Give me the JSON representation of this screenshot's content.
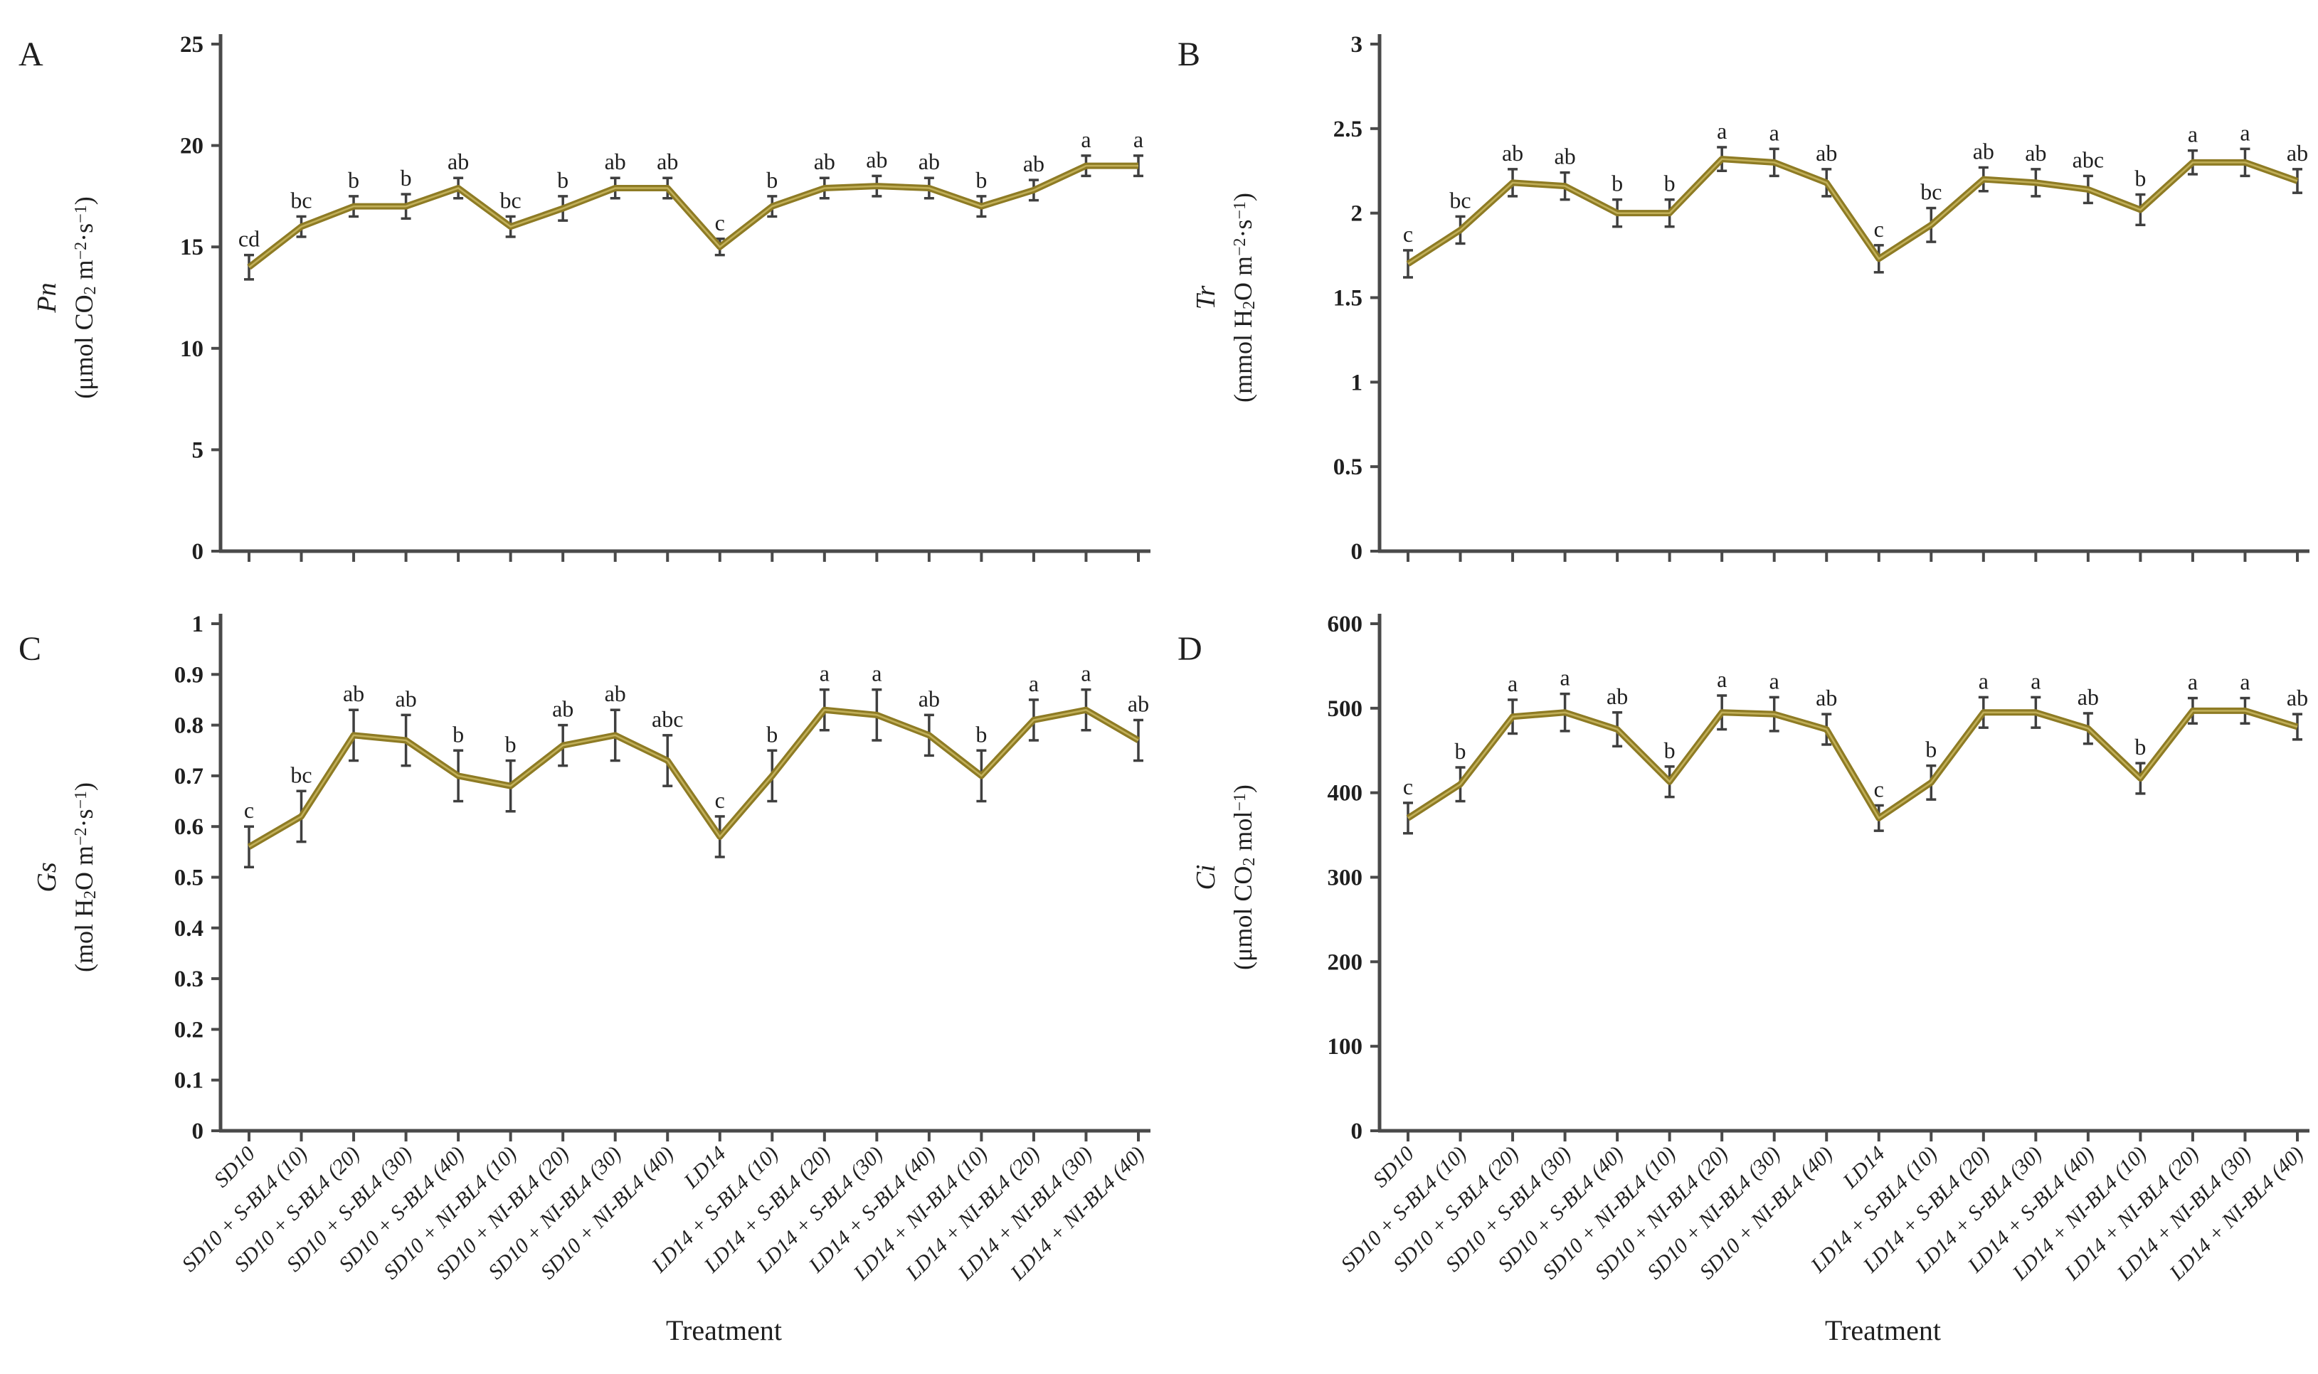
{
  "figure": {
    "colors": {
      "line": "#8E7B24",
      "line_core": "#C1AF58",
      "axis": "#4A4A4A",
      "error_bar": "#3F3F3F",
      "text": "#1F1F1F"
    },
    "treatment_axis_label": "Treatment"
  },
  "chart_data": [
    {
      "type": "line",
      "panel_label": "A",
      "ylabel_main": "Pn",
      "ylabel_unit": "(μmol CO_2_ m^−2^·s^−1^)",
      "xlabel": "",
      "ylim": [
        0,
        25
      ],
      "yticks": [
        {
          "v": 0,
          "t": "0"
        },
        {
          "v": 5,
          "t": "5"
        },
        {
          "v": 10,
          "t": "10"
        },
        {
          "v": 15,
          "t": "15"
        },
        {
          "v": 20,
          "t": "20"
        },
        {
          "v": 25,
          "t": "25"
        }
      ],
      "categories": [
        "SD10",
        "SD10 + S-BL4 (10)",
        "SD10 + S-BL4 (20)",
        "SD10 + S-BL4 (30)",
        "SD10 + S-BL4 (40)",
        "SD10 + NI-BL4 (10)",
        "SD10 + NI-BL4 (20)",
        "SD10 + NI-BL4 (30)",
        "SD10 + NI-BL4 (40)",
        "LD14",
        "LD14 + S-BL4 (10)",
        "LD14 + S-BL4 (20)",
        "LD14 + S-BL4 (30)",
        "LD14 + S-BL4 (40)",
        "LD14 + NI-BL4 (10)",
        "LD14 + NI-BL4 (20)",
        "LD14 + NI-BL4 (30)",
        "LD14 + NI-BL4 (40)"
      ],
      "values": [
        14.0,
        16.0,
        17.0,
        17.0,
        17.9,
        16.0,
        16.9,
        17.9,
        17.9,
        15.0,
        17.0,
        17.9,
        18.0,
        17.9,
        17.0,
        17.8,
        19.0,
        19.0
      ],
      "errors": [
        0.6,
        0.5,
        0.5,
        0.6,
        0.5,
        0.5,
        0.6,
        0.5,
        0.5,
        0.4,
        0.5,
        0.5,
        0.5,
        0.5,
        0.5,
        0.5,
        0.5,
        0.5
      ],
      "letters": [
        "cd",
        "bc",
        "b",
        "b",
        "ab",
        "bc",
        "b",
        "ab",
        "ab",
        "c",
        "b",
        "ab",
        "ab",
        "ab",
        "b",
        "ab",
        "a",
        "a"
      ]
    },
    {
      "type": "line",
      "panel_label": "B",
      "ylabel_main": "Tr",
      "ylabel_unit": "(mmol H_2_O m^−2^·s^−1^)",
      "xlabel": "",
      "ylim": [
        0,
        3
      ],
      "yticks": [
        {
          "v": 0,
          "t": "0"
        },
        {
          "v": 0.5,
          "t": "0.5"
        },
        {
          "v": 1,
          "t": "1"
        },
        {
          "v": 1.5,
          "t": "1.5"
        },
        {
          "v": 2,
          "t": "2"
        },
        {
          "v": 2.5,
          "t": "2.5"
        },
        {
          "v": 3,
          "t": "3"
        }
      ],
      "categories": [
        "SD10",
        "SD10 + S-BL4 (10)",
        "SD10 + S-BL4 (20)",
        "SD10 + S-BL4 (30)",
        "SD10 + S-BL4 (40)",
        "SD10 + NI-BL4 (10)",
        "SD10 + NI-BL4 (20)",
        "SD10 + NI-BL4 (30)",
        "SD10 + NI-BL4 (40)",
        "LD14",
        "LD14 + S-BL4 (10)",
        "LD14 + S-BL4 (20)",
        "LD14 + S-BL4 (30)",
        "LD14 + S-BL4 (40)",
        "LD14 + NI-BL4 (10)",
        "LD14 + NI-BL4 (20)",
        "LD14 + NI-BL4 (30)",
        "LD14 + NI-BL4 (40)"
      ],
      "values": [
        1.7,
        1.9,
        2.18,
        2.16,
        2.0,
        2.0,
        2.32,
        2.3,
        2.18,
        1.73,
        1.93,
        2.2,
        2.18,
        2.14,
        2.02,
        2.3,
        2.3,
        2.19
      ],
      "errors": [
        0.08,
        0.08,
        0.08,
        0.08,
        0.08,
        0.08,
        0.07,
        0.08,
        0.08,
        0.08,
        0.1,
        0.07,
        0.08,
        0.08,
        0.09,
        0.07,
        0.08,
        0.07
      ],
      "letters": [
        "c",
        "bc",
        "ab",
        "ab",
        "b",
        "b",
        "a",
        "a",
        "ab",
        "c",
        "bc",
        "ab",
        "ab",
        "abc",
        "b",
        "a",
        "a",
        "ab"
      ]
    },
    {
      "type": "line",
      "panel_label": "C",
      "ylabel_main": "Gs",
      "ylabel_unit": "(mol H_2_O m^−2^·s^−1^)",
      "xlabel": "Treatment",
      "ylim": [
        0,
        1
      ],
      "yticks": [
        {
          "v": 0,
          "t": "0"
        },
        {
          "v": 0.1,
          "t": "0.1"
        },
        {
          "v": 0.2,
          "t": "0.2"
        },
        {
          "v": 0.3,
          "t": "0.3"
        },
        {
          "v": 0.4,
          "t": "0.4"
        },
        {
          "v": 0.5,
          "t": "0.5"
        },
        {
          "v": 0.6,
          "t": "0.6"
        },
        {
          "v": 0.7,
          "t": "0.7"
        },
        {
          "v": 0.8,
          "t": "0.8"
        },
        {
          "v": 0.9,
          "t": "0.9"
        },
        {
          "v": 1,
          "t": "1"
        }
      ],
      "categories": [
        "SD10",
        "SD10 + S-BL4 (10)",
        "SD10 + S-BL4 (20)",
        "SD10 + S-BL4 (30)",
        "SD10 + S-BL4 (40)",
        "SD10 + NI-BL4 (10)",
        "SD10 + NI-BL4 (20)",
        "SD10 + NI-BL4 (30)",
        "SD10 + NI-BL4 (40)",
        "LD14",
        "LD14 + S-BL4 (10)",
        "LD14 + S-BL4 (20)",
        "LD14 + S-BL4 (30)",
        "LD14 + S-BL4 (40)",
        "LD14 + NI-BL4 (10)",
        "LD14 + NI-BL4 (20)",
        "LD14 + NI-BL4 (30)",
        "LD14 + NI-BL4 (40)"
      ],
      "values": [
        0.56,
        0.62,
        0.78,
        0.77,
        0.7,
        0.68,
        0.76,
        0.78,
        0.73,
        0.58,
        0.7,
        0.83,
        0.82,
        0.78,
        0.7,
        0.81,
        0.83,
        0.77
      ],
      "errors": [
        0.04,
        0.05,
        0.05,
        0.05,
        0.05,
        0.05,
        0.04,
        0.05,
        0.05,
        0.04,
        0.05,
        0.04,
        0.05,
        0.04,
        0.05,
        0.04,
        0.04,
        0.04
      ],
      "letters": [
        "c",
        "bc",
        "ab",
        "ab",
        "b",
        "b",
        "ab",
        "ab",
        "abc",
        "c",
        "b",
        "a",
        "a",
        "ab",
        "b",
        "a",
        "a",
        "ab"
      ]
    },
    {
      "type": "line",
      "panel_label": "D",
      "ylabel_main": "Ci",
      "ylabel_unit": "(μmol CO_2_ mol^−1^)",
      "xlabel": "Treatment",
      "ylim": [
        0,
        600
      ],
      "yticks": [
        {
          "v": 0,
          "t": "0"
        },
        {
          "v": 100,
          "t": "100"
        },
        {
          "v": 200,
          "t": "200"
        },
        {
          "v": 300,
          "t": "300"
        },
        {
          "v": 400,
          "t": "400"
        },
        {
          "v": 500,
          "t": "500"
        },
        {
          "v": 600,
          "t": "600"
        }
      ],
      "categories": [
        "SD10",
        "SD10 + S-BL4 (10)",
        "SD10 + S-BL4 (20)",
        "SD10 + S-BL4 (30)",
        "SD10 + S-BL4 (40)",
        "SD10 + NI-BL4 (10)",
        "SD10 + NI-BL4 (20)",
        "SD10 + NI-BL4 (30)",
        "SD10 + NI-BL4 (40)",
        "LD14",
        "LD14 + S-BL4 (10)",
        "LD14 + S-BL4 (20)",
        "LD14 + S-BL4 (30)",
        "LD14 + S-BL4 (40)",
        "LD14 + NI-BL4 (10)",
        "LD14 + NI-BL4 (20)",
        "LD14 + NI-BL4 (30)",
        "LD14 + NI-BL4 (40)"
      ],
      "values": [
        370,
        410,
        490,
        495,
        475,
        413,
        495,
        493,
        475,
        370,
        412,
        495,
        495,
        476,
        417,
        497,
        497,
        478
      ],
      "errors": [
        18,
        20,
        20,
        22,
        20,
        18,
        20,
        20,
        18,
        15,
        20,
        18,
        18,
        18,
        18,
        15,
        15,
        15
      ],
      "letters": [
        "c",
        "b",
        "a",
        "a",
        "ab",
        "b",
        "a",
        "a",
        "ab",
        "c",
        "b",
        "a",
        "a",
        "ab",
        "b",
        "a",
        "a",
        "ab"
      ]
    }
  ]
}
